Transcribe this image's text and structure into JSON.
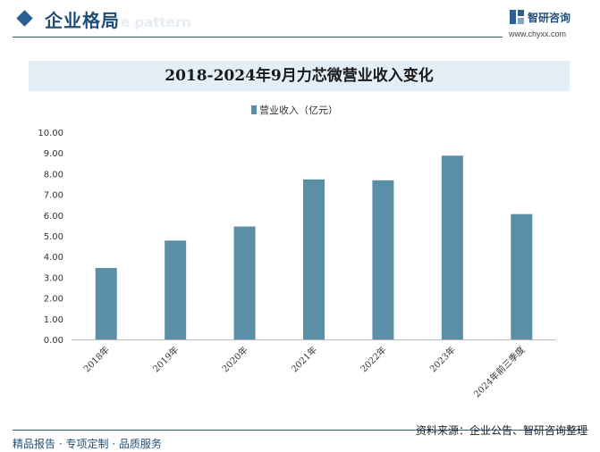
{
  "header": {
    "section_title": "企业格局",
    "section_sub": "e pattern",
    "logo_name": "智研咨询",
    "logo_url": "www.chyxx.com"
  },
  "chart_data": {
    "type": "bar",
    "title": "2018-2024年9月力芯微营业收入变化",
    "categories": [
      "2018年",
      "2019年",
      "2020年",
      "2021年",
      "2022年",
      "2023年",
      "2024年前三季度"
    ],
    "series": [
      {
        "name": "营业收入（亿元）",
        "values": [
          3.45,
          4.77,
          5.45,
          7.72,
          7.68,
          8.87,
          6.05
        ]
      }
    ],
    "ylim": [
      0,
      10
    ],
    "yticks": [
      "0.00",
      "1.00",
      "2.00",
      "3.00",
      "4.00",
      "5.00",
      "6.00",
      "7.00",
      "8.00",
      "9.00",
      "10.00"
    ],
    "legend_position": "top-center",
    "grid": false,
    "bar_color": "#5b8fa8"
  },
  "footer": {
    "source": "资料来源：企业公告、智研咨询整理",
    "tagline": "精品报告 · 专项定制 · 品质服务"
  }
}
